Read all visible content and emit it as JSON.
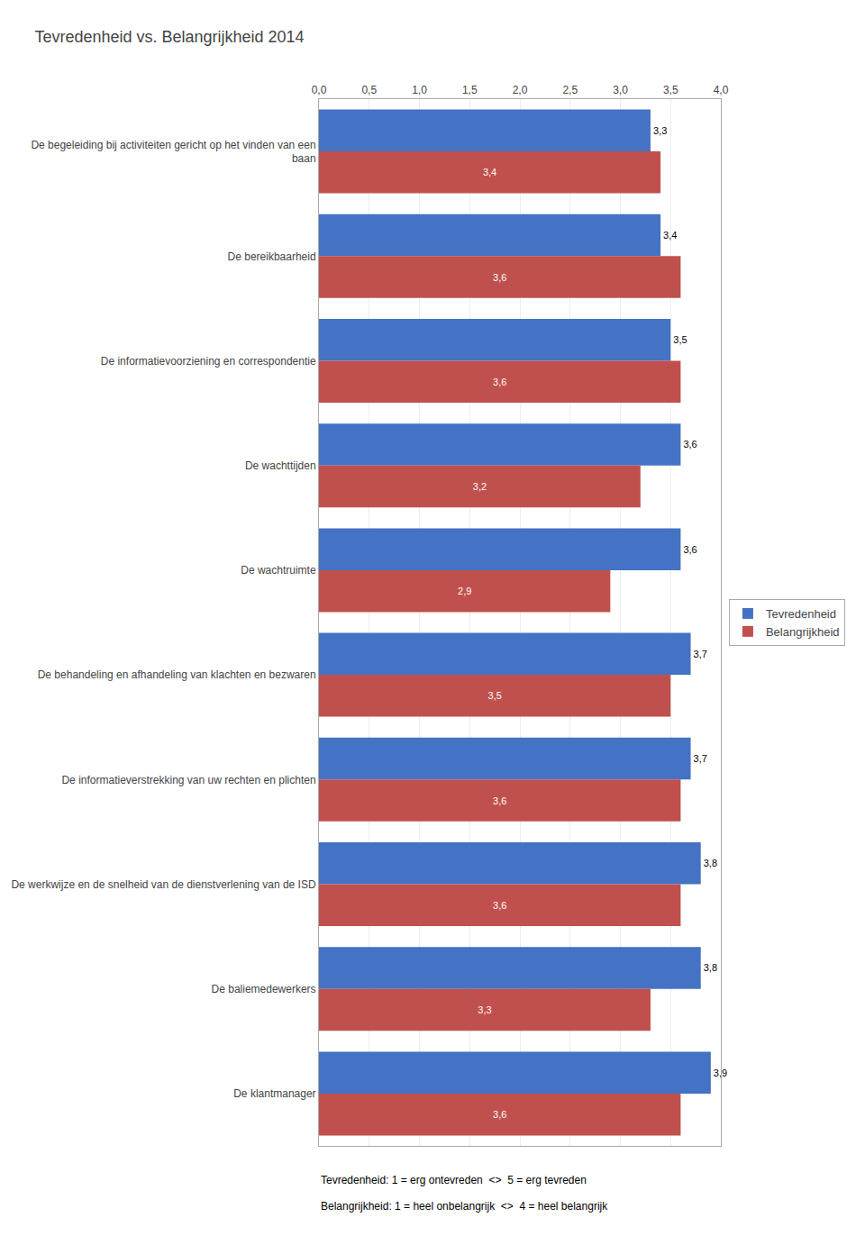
{
  "chart_data": {
    "type": "bar",
    "orientation": "horizontal",
    "title": "Tevredenheid vs. Belangrijkheid 2014",
    "categories": [
      "De begeleiding bij activiteiten gericht op het vinden van een\nbaan",
      "De bereikbaarheid",
      "De informatievoorziening en correspondentie",
      "De wachttijden",
      "De wachtruimte",
      "De behandeling en afhandeling van klachten en bezwaren",
      "De informatieverstrekking van uw rechten en plichten",
      "De werkwijze en de snelheid van de dienstverlening van de ISD",
      "De baliemedewerkers",
      "De klantmanager"
    ],
    "series": [
      {
        "name": "Tevredenheid",
        "color": "#4472C4",
        "values": [
          3.3,
          3.4,
          3.5,
          3.6,
          3.6,
          3.7,
          3.7,
          3.8,
          3.8,
          3.9
        ],
        "value_labels": [
          "3,3",
          "3,4",
          "3,5",
          "3,6",
          "3,6",
          "3,7",
          "3,7",
          "3,8",
          "3,8",
          "3,9"
        ]
      },
      {
        "name": "Belangrijkheid",
        "color": "#C0504D",
        "values": [
          3.4,
          3.6,
          3.6,
          3.2,
          2.9,
          3.5,
          3.6,
          3.6,
          3.3,
          3.6
        ],
        "value_labels": [
          "3,4",
          "3,6",
          "3,6",
          "3,2",
          "2,9",
          "3,5",
          "3,6",
          "3,6",
          "3,3",
          "3,6"
        ]
      }
    ],
    "xlim": [
      0,
      4.0
    ],
    "xticks": [
      {
        "value": 0.0,
        "label": "0,0"
      },
      {
        "value": 0.5,
        "label": "0,5"
      },
      {
        "value": 1.0,
        "label": "1,0"
      },
      {
        "value": 1.5,
        "label": "1,5"
      },
      {
        "value": 2.0,
        "label": "2,0"
      },
      {
        "value": 2.5,
        "label": "2,5"
      },
      {
        "value": 3.0,
        "label": "3,0"
      },
      {
        "value": 3.5,
        "label": "3,5"
      },
      {
        "value": 4.0,
        "label": "4,0"
      }
    ],
    "data_labels": true,
    "grid": true,
    "legend": "right",
    "annotations": [
      "Tevredenheid: 1 = erg ontevreden  <>  5 = erg tevreden",
      "Belangrijkheid: 1 = heel onbelangrijk  <>  4 = heel belangrijk"
    ]
  }
}
